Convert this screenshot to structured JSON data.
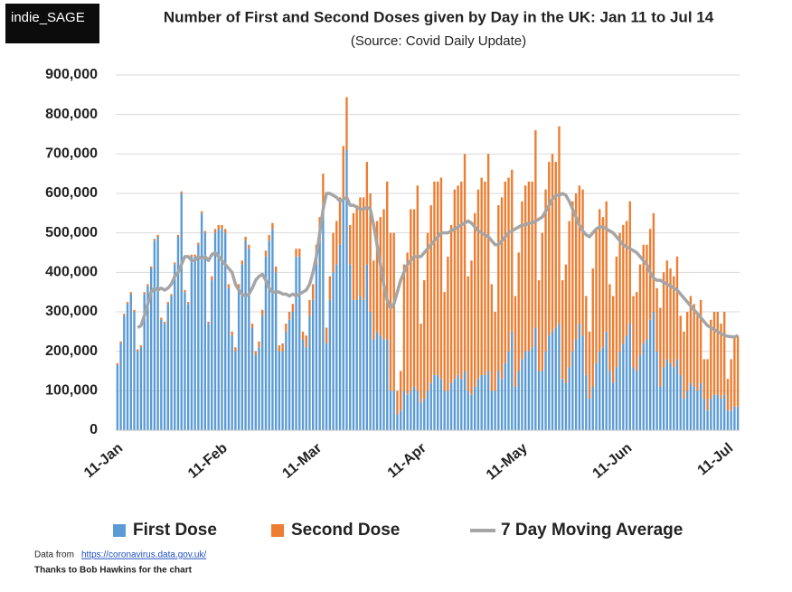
{
  "chart_data": {
    "type": "bar",
    "stacked": true,
    "logo": "indie_SAGE",
    "title": "Number of First and Second Doses given by Day in the UK: Jan 11 to Jul 14",
    "subtitle": "(Source: Covid Daily Update)",
    "source_note": {
      "prefix": "Data from",
      "url": "https://coronavirus.data.gov.uk/"
    },
    "credit": "Thanks to Bob Hawkins for the chart",
    "grid": true,
    "legend": "bottom",
    "ylim": [
      0,
      900000
    ],
    "yticks": [
      0,
      {
        "value": 100000,
        "label": "100,000"
      },
      {
        "value": 200000,
        "label": "200,000"
      },
      {
        "value": 300000,
        "label": "300,000"
      },
      {
        "value": 400000,
        "label": "400,000"
      },
      {
        "value": 500000,
        "label": "500,000"
      },
      {
        "value": 600000,
        "label": "600,000"
      },
      {
        "value": 700000,
        "label": "700,000"
      },
      {
        "value": 800000,
        "label": "800,000"
      },
      {
        "value": 900000,
        "label": "900,000"
      }
    ],
    "categories": [
      "11-Jan",
      null,
      null,
      null,
      null,
      null,
      null,
      null,
      null,
      null,
      null,
      null,
      null,
      null,
      null,
      null,
      null,
      null,
      null,
      null,
      null,
      null,
      null,
      null,
      null,
      null,
      null,
      null,
      null,
      null,
      null,
      "11-Feb",
      null,
      null,
      null,
      null,
      null,
      null,
      null,
      null,
      null,
      null,
      null,
      null,
      null,
      null,
      null,
      null,
      null,
      null,
      null,
      null,
      null,
      null,
      null,
      null,
      null,
      null,
      null,
      "11-Mar",
      null,
      null,
      null,
      null,
      null,
      null,
      null,
      null,
      null,
      null,
      null,
      null,
      null,
      null,
      null,
      null,
      null,
      null,
      null,
      null,
      null,
      null,
      null,
      null,
      null,
      null,
      null,
      null,
      null,
      null,
      "11-Apr",
      null,
      null,
      null,
      null,
      null,
      null,
      null,
      null,
      null,
      null,
      null,
      null,
      null,
      null,
      null,
      null,
      null,
      null,
      null,
      null,
      null,
      null,
      null,
      null,
      null,
      null,
      null,
      null,
      null,
      "11-May",
      null,
      null,
      null,
      null,
      null,
      null,
      null,
      null,
      null,
      null,
      null,
      null,
      null,
      null,
      null,
      null,
      null,
      null,
      null,
      null,
      null,
      null,
      null,
      null,
      null,
      null,
      null,
      null,
      null,
      null,
      "11-Jun",
      null,
      null,
      null,
      null,
      null,
      null,
      null,
      null,
      null,
      null,
      null,
      null,
      null,
      null,
      null,
      null,
      null,
      null,
      null,
      null,
      null,
      null,
      null,
      null,
      null,
      null,
      null,
      null,
      null,
      "11-Jul",
      null,
      null,
      null
    ],
    "series": [
      {
        "name": "First Dose",
        "color": "#5b9bd5",
        "values": [
          165000,
          220000,
          290000,
          320000,
          345000,
          300000,
          200000,
          210000,
          345000,
          365000,
          410000,
          480000,
          490000,
          280000,
          270000,
          320000,
          340000,
          420000,
          490000,
          600000,
          350000,
          320000,
          440000,
          440000,
          470000,
          550000,
          500000,
          270000,
          380000,
          500000,
          510000,
          510000,
          500000,
          360000,
          240000,
          200000,
          360000,
          420000,
          480000,
          460000,
          260000,
          190000,
          210000,
          290000,
          440000,
          480000,
          510000,
          400000,
          200000,
          200000,
          250000,
          280000,
          300000,
          440000,
          440000,
          230000,
          210000,
          290000,
          330000,
          420000,
          480000,
          560000,
          220000,
          330000,
          400000,
          420000,
          470000,
          590000,
          711000,
          420000,
          330000,
          330000,
          340000,
          330000,
          420000,
          300000,
          230000,
          250000,
          240000,
          230000,
          230000,
          100000,
          100000,
          40000,
          50000,
          100000,
          90000,
          100000,
          110000,
          100000,
          70000,
          80000,
          100000,
          120000,
          140000,
          140000,
          130000,
          100000,
          100000,
          120000,
          130000,
          140000,
          130000,
          150000,
          100000,
          90000,
          110000,
          130000,
          140000,
          140000,
          150000,
          100000,
          100000,
          150000,
          130000,
          170000,
          200000,
          250000,
          110000,
          150000,
          180000,
          200000,
          200000,
          210000,
          260000,
          150000,
          150000,
          200000,
          240000,
          250000,
          260000,
          270000,
          130000,
          120000,
          160000,
          200000,
          230000,
          270000,
          240000,
          140000,
          80000,
          110000,
          170000,
          200000,
          210000,
          250000,
          150000,
          120000,
          160000,
          200000,
          220000,
          240000,
          270000,
          160000,
          150000,
          190000,
          220000,
          230000,
          280000,
          300000,
          200000,
          110000,
          160000,
          180000,
          170000,
          160000,
          180000,
          140000,
          80000,
          100000,
          120000,
          110000,
          100000,
          120000,
          80000,
          50000,
          80000,
          90000,
          90000,
          80000,
          90000,
          50000,
          50000,
          60000,
          60000
        ]
      },
      {
        "name": "Second Dose",
        "color": "#ed7d31",
        "values": [
          5000,
          5000,
          5000,
          5000,
          5000,
          5000,
          5000,
          5000,
          5000,
          5000,
          5000,
          5000,
          5000,
          5000,
          5000,
          5000,
          5000,
          5000,
          5000,
          5000,
          5000,
          5000,
          5000,
          5000,
          5000,
          5000,
          5000,
          5000,
          10000,
          10000,
          10000,
          10000,
          10000,
          10000,
          10000,
          10000,
          10000,
          10000,
          10000,
          10000,
          10000,
          10000,
          15000,
          15000,
          15000,
          15000,
          15000,
          15000,
          15000,
          20000,
          20000,
          20000,
          20000,
          20000,
          20000,
          20000,
          30000,
          40000,
          40000,
          50000,
          60000,
          90000,
          40000,
          60000,
          100000,
          110000,
          120000,
          130000,
          133000,
          100000,
          220000,
          240000,
          250000,
          260000,
          260000,
          300000,
          200000,
          280000,
          300000,
          330000,
          400000,
          400000,
          400000,
          60000,
          100000,
          320000,
          360000,
          460000,
          450000,
          520000,
          200000,
          300000,
          400000,
          450000,
          490000,
          490000,
          510000,
          250000,
          340000,
          400000,
          480000,
          480000,
          500000,
          550000,
          290000,
          340000,
          440000,
          480000,
          500000,
          490000,
          550000,
          270000,
          200000,
          420000,
          460000,
          460000,
          440000,
          410000,
          230000,
          300000,
          400000,
          420000,
          430000,
          420000,
          500000,
          230000,
          350000,
          410000,
          440000,
          450000,
          420000,
          500000,
          250000,
          300000,
          370000,
          380000,
          370000,
          350000,
          370000,
          200000,
          170000,
          300000,
          340000,
          360000,
          330000,
          330000,
          220000,
          220000,
          280000,
          300000,
          300000,
          290000,
          310000,
          180000,
          200000,
          230000,
          250000,
          240000,
          230000,
          250000,
          160000,
          200000,
          240000,
          250000,
          240000,
          230000,
          260000,
          150000,
          170000,
          200000,
          220000,
          210000,
          190000,
          210000,
          100000,
          130000,
          200000,
          210000,
          210000,
          190000,
          210000,
          80000,
          130000,
          180000,
          180000
        ]
      },
      {
        "name": "7 Day Moving Average",
        "color": "#a5a5a5",
        "type": "line",
        "values": [
          null,
          null,
          null,
          null,
          null,
          null,
          260000,
          265000,
          290000,
          320000,
          350000,
          360000,
          355000,
          360000,
          355000,
          360000,
          370000,
          390000,
          400000,
          420000,
          440000,
          440000,
          430000,
          430000,
          440000,
          435000,
          440000,
          430000,
          445000,
          450000,
          440000,
          430000,
          420000,
          410000,
          400000,
          370000,
          355000,
          345000,
          340000,
          345000,
          360000,
          380000,
          390000,
          395000,
          380000,
          360000,
          350000,
          350000,
          350000,
          345000,
          345000,
          340000,
          345000,
          340000,
          345000,
          350000,
          355000,
          370000,
          400000,
          440000,
          500000,
          560000,
          600000,
          600000,
          595000,
          590000,
          580000,
          585000,
          590000,
          570000,
          570000,
          565000,
          560000,
          560000,
          565000,
          560000,
          520000,
          470000,
          420000,
          370000,
          330000,
          310000,
          320000,
          350000,
          380000,
          400000,
          420000,
          430000,
          440000,
          440000,
          440000,
          450000,
          460000,
          470000,
          480000,
          490000,
          500000,
          500000,
          500000,
          505000,
          510000,
          515000,
          520000,
          525000,
          530000,
          525000,
          515000,
          505000,
          500000,
          495000,
          490000,
          480000,
          470000,
          470000,
          480000,
          490000,
          500000,
          505000,
          510000,
          515000,
          520000,
          520000,
          525000,
          525000,
          530000,
          535000,
          540000,
          555000,
          570000,
          585000,
          595000,
          595000,
          600000,
          595000,
          580000,
          560000,
          540000,
          520000,
          505000,
          495000,
          490000,
          500000,
          510000,
          515000,
          515000,
          510000,
          505000,
          500000,
          490000,
          480000,
          470000,
          465000,
          460000,
          455000,
          450000,
          440000,
          430000,
          420000,
          400000,
          385000,
          380000,
          380000,
          375000,
          370000,
          365000,
          360000,
          355000,
          345000,
          335000,
          325000,
          315000,
          305000,
          295000,
          285000,
          275000,
          265000,
          260000,
          255000,
          250000,
          245000,
          240000,
          238000,
          237000,
          236000,
          240000
        ]
      }
    ]
  }
}
